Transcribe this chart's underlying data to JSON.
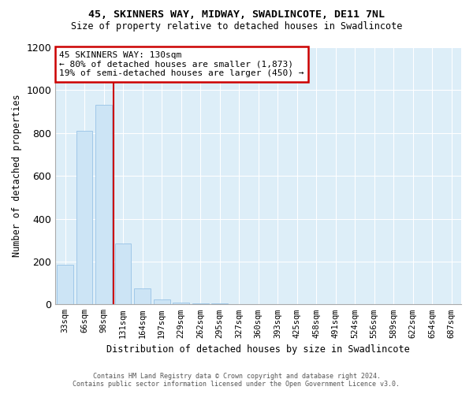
{
  "title": "45, SKINNERS WAY, MIDWAY, SWADLINCOTE, DE11 7NL",
  "subtitle": "Size of property relative to detached houses in Swadlincote",
  "xlabel": "Distribution of detached houses by size in Swadlincote",
  "ylabel": "Number of detached properties",
  "footer_line1": "Contains HM Land Registry data © Crown copyright and database right 2024.",
  "footer_line2": "Contains public sector information licensed under the Open Government Licence v3.0.",
  "categories": [
    "33sqm",
    "66sqm",
    "98sqm",
    "131sqm",
    "164sqm",
    "197sqm",
    "229sqm",
    "262sqm",
    "295sqm",
    "327sqm",
    "360sqm",
    "393sqm",
    "425sqm",
    "458sqm",
    "491sqm",
    "524sqm",
    "556sqm",
    "589sqm",
    "622sqm",
    "654sqm",
    "687sqm"
  ],
  "values": [
    185,
    810,
    930,
    285,
    75,
    25,
    10,
    5,
    3,
    2,
    2,
    1,
    1,
    1,
    0,
    0,
    0,
    0,
    0,
    0,
    0
  ],
  "bar_color": "#cce4f5",
  "bar_edgecolor": "#a0c8e8",
  "vline_color": "#cc0000",
  "annotation_text": "45 SKINNERS WAY: 130sqm\n← 80% of detached houses are smaller (1,873)\n19% of semi-detached houses are larger (450) →",
  "annotation_box_color": "#cc0000",
  "ylim": [
    0,
    1200
  ],
  "yticks": [
    0,
    200,
    400,
    600,
    800,
    1000,
    1200
  ],
  "bg_color": "#ffffff",
  "plot_bg_color": "#ddeef8",
  "grid_color": "#ffffff"
}
